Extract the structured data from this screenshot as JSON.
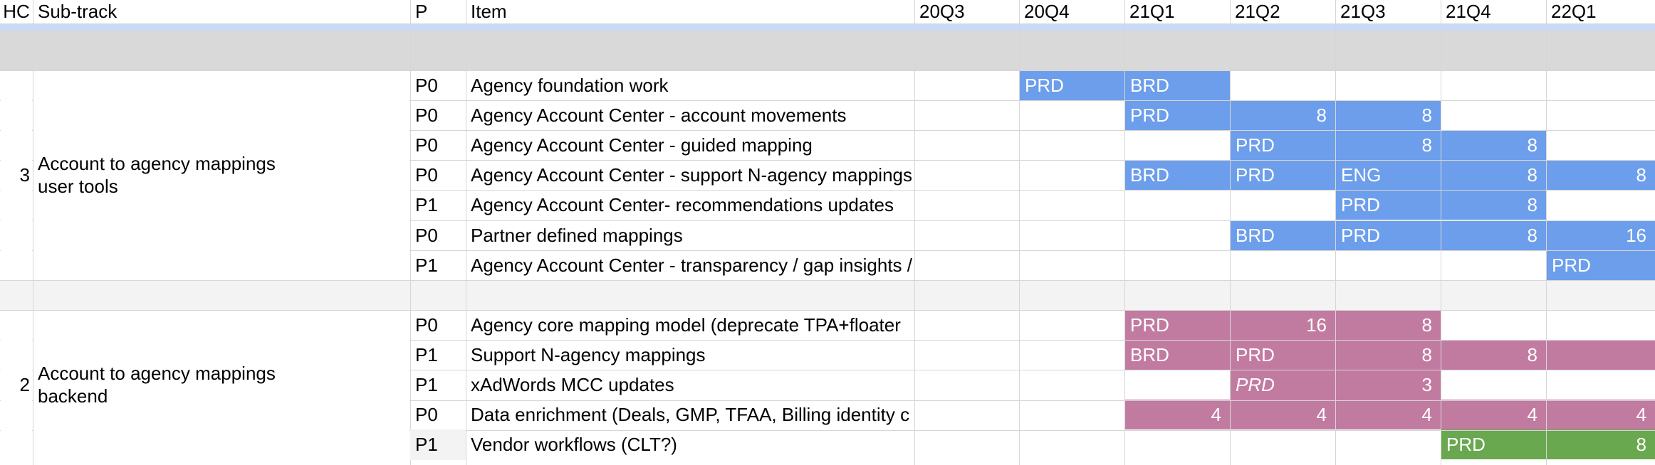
{
  "header": {
    "hc": "HC",
    "subtrack": "Sub-track",
    "p": "P",
    "item": "Item",
    "quarters": [
      "20Q3",
      "20Q4",
      "21Q1",
      "21Q2",
      "21Q3",
      "21Q4",
      "22Q1"
    ]
  },
  "colors": {
    "user_tools_bar": "#6d9eeb",
    "backend_bar": "#c27ba0",
    "vendor_bar": "#6aa84f",
    "section_band": "#d9d9d9",
    "separator_band": "#f3f3f3",
    "header_border": "#c9daf8"
  },
  "groups": [
    {
      "hc": "3",
      "subtrack_lines": [
        "Account to agency mappings",
        "user tools"
      ],
      "rows": [
        {
          "p": "P0",
          "item": "Agency foundation work",
          "cells": [
            "",
            "PRD",
            "BRD",
            "",
            "",
            "",
            ""
          ]
        },
        {
          "p": "P0",
          "item": "Agency Account Center - account movements",
          "cells": [
            "",
            "",
            "PRD",
            "8",
            "8",
            "",
            ""
          ]
        },
        {
          "p": "P0",
          "item": "Agency Account Center - guided mapping",
          "cells": [
            "",
            "",
            "",
            "PRD",
            "8",
            "8",
            ""
          ]
        },
        {
          "p": "P0",
          "item": "Agency Account Center - support N-agency mappings",
          "cells": [
            "",
            "",
            "BRD",
            "PRD",
            "ENG",
            "8",
            "8"
          ]
        },
        {
          "p": "P1",
          "item": "Agency Account Center- recommendations updates",
          "cells": [
            "",
            "",
            "",
            "",
            "PRD",
            "8",
            ""
          ]
        },
        {
          "p": "P0",
          "item": "Partner defined mappings",
          "cells": [
            "",
            "",
            "",
            "BRD",
            "PRD",
            "8",
            "16"
          ]
        },
        {
          "p": "P1",
          "item": "Agency Account Center - transparency / gap insights / notifications",
          "cells": [
            "",
            "",
            "",
            "",
            "",
            "",
            "PRD"
          ]
        }
      ]
    },
    {
      "hc": "2",
      "subtrack_lines": [
        "Account to agency mappings",
        "backend"
      ],
      "rows": [
        {
          "p": "P0",
          "item": "Agency core mapping model (deprecate TPA+floater",
          "cells": [
            "",
            "",
            "PRD",
            "16",
            "8",
            "",
            ""
          ]
        },
        {
          "p": "P1",
          "item": "Support N-agency mappings",
          "cells": [
            "",
            "",
            "BRD",
            "PRD",
            "8",
            "8",
            ""
          ]
        },
        {
          "p": "P1",
          "item": "xAdWords MCC updates",
          "cells": [
            "",
            "",
            "",
            "PRD",
            "3",
            "",
            ""
          ]
        },
        {
          "p": "P0",
          "item": "Data enrichment (Deals, GMP, TFAA, Billing identity c",
          "cells": [
            "",
            "",
            "4",
            "4",
            "4",
            "4",
            "4"
          ]
        },
        {
          "p": "P1",
          "item": "Vendor workflows (CLT?)",
          "cells": [
            "",
            "",
            "",
            "",
            "",
            "PRD",
            "8"
          ]
        }
      ]
    }
  ]
}
